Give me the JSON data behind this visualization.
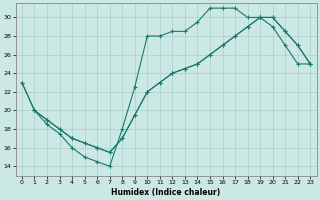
{
  "xlabel": "Humidex (Indice chaleur)",
  "xlim": [
    -0.5,
    23.5
  ],
  "ylim": [
    13,
    31.5
  ],
  "yticks": [
    14,
    16,
    18,
    20,
    22,
    24,
    26,
    28,
    30
  ],
  "xticks": [
    0,
    1,
    2,
    3,
    4,
    5,
    6,
    7,
    8,
    9,
    10,
    11,
    12,
    13,
    14,
    15,
    16,
    17,
    18,
    19,
    20,
    21,
    22,
    23
  ],
  "bg_color": "#cce8e5",
  "grid_color": "#aacfcc",
  "line_color": "#1a7a6a",
  "s1x": [
    0,
    1,
    2,
    3,
    4,
    5,
    6,
    7,
    8,
    9,
    10,
    11,
    12,
    13,
    14,
    15,
    16,
    17,
    18,
    19,
    20,
    21,
    22,
    23
  ],
  "s1y": [
    23,
    20,
    18.5,
    17.5,
    16,
    15,
    14.5,
    14,
    18,
    22.5,
    28,
    28,
    28.5,
    28.5,
    29.5,
    31,
    31,
    31,
    30,
    30,
    29,
    27,
    25,
    25
  ],
  "s2x": [
    0,
    1,
    2,
    3,
    4,
    5,
    6,
    7,
    8,
    9,
    10,
    11,
    12,
    13,
    14,
    15,
    16,
    17,
    18,
    19,
    20,
    21,
    22,
    23
  ],
  "s2y": [
    23,
    20,
    19,
    18,
    17,
    16.5,
    16,
    15.5,
    17,
    19.5,
    22,
    23,
    24,
    24.5,
    25,
    26,
    27,
    28,
    29,
    30,
    30,
    28.5,
    27,
    25
  ],
  "s3x": [
    1,
    2,
    3,
    4,
    5,
    6,
    7,
    8,
    9,
    10,
    11,
    12,
    13,
    14,
    15,
    16,
    17,
    18,
    19,
    20,
    21,
    22,
    23
  ],
  "s3y": [
    20,
    19,
    18,
    17,
    16.5,
    16,
    15.5,
    17,
    19.5,
    22,
    23,
    24,
    24.5,
    25,
    26,
    27,
    28,
    29,
    30,
    30,
    28.5,
    27,
    25
  ]
}
